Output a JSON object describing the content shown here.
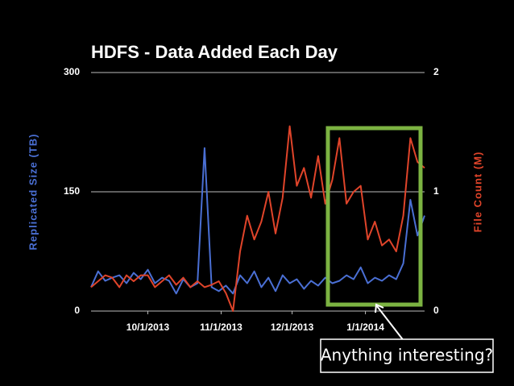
{
  "chart_data": {
    "type": "line",
    "title": "HDFS - Data Added Each Day",
    "y_label": "Replicated Size (TB)",
    "y2_label": "File Count (M)",
    "annotation": "Anything interesting?",
    "x": [
      "2013-09-07",
      "2013-09-10",
      "2013-09-13",
      "2013-09-16",
      "2013-09-19",
      "2013-09-22",
      "2013-09-25",
      "2013-09-28",
      "2013-10-01",
      "2013-10-04",
      "2013-10-07",
      "2013-10-10",
      "2013-10-13",
      "2013-10-16",
      "2013-10-19",
      "2013-10-22",
      "2013-10-25",
      "2013-10-28",
      "2013-10-31",
      "2013-11-03",
      "2013-11-06",
      "2013-11-09",
      "2013-11-12",
      "2013-11-15",
      "2013-11-18",
      "2013-11-21",
      "2013-11-24",
      "2013-11-27",
      "2013-11-30",
      "2013-12-03",
      "2013-12-06",
      "2013-12-09",
      "2013-12-12",
      "2013-12-15",
      "2013-12-18",
      "2013-12-21",
      "2013-12-24",
      "2013-12-27",
      "2013-12-30",
      "2014-01-02",
      "2014-01-05",
      "2014-01-08",
      "2014-01-11",
      "2014-01-14",
      "2014-01-17",
      "2014-01-20",
      "2014-01-23",
      "2014-01-26"
    ],
    "xlim": [
      "2013-09-07",
      "2014-01-26"
    ],
    "xticks": [
      {
        "value": "2013-10-01",
        "label": "10/1/2013"
      },
      {
        "value": "2013-11-01",
        "label": "11/1/2013"
      },
      {
        "value": "2013-12-01",
        "label": "12/1/2013"
      },
      {
        "value": "2014-01-01",
        "label": "1/1/2014"
      }
    ],
    "ylim": [
      0,
      300
    ],
    "yticks": [
      0,
      150,
      300
    ],
    "y2lim": [
      0,
      2
    ],
    "y2ticks": [
      0,
      1,
      2
    ],
    "grid": true,
    "series": [
      {
        "name": "Replicated Size (TB)",
        "color": "#4a6fd4",
        "axis": "y",
        "values": [
          30,
          50,
          38,
          42,
          45,
          35,
          48,
          40,
          52,
          35,
          42,
          38,
          22,
          40,
          30,
          35,
          205,
          30,
          25,
          32,
          22,
          45,
          35,
          50,
          30,
          42,
          25,
          45,
          35,
          40,
          28,
          38,
          32,
          42,
          35,
          38,
          45,
          40,
          55,
          35,
          42,
          38,
          45,
          40,
          60,
          140,
          95,
          120
        ]
      },
      {
        "name": "File Count (M)",
        "color": "#e0442a",
        "axis": "y2",
        "values": [
          0.2,
          0.25,
          0.3,
          0.28,
          0.2,
          0.3,
          0.25,
          0.3,
          0.3,
          0.2,
          0.25,
          0.3,
          0.22,
          0.28,
          0.2,
          0.25,
          0.2,
          0.22,
          0.25,
          0.15,
          0.0,
          0.5,
          0.8,
          0.6,
          0.75,
          1.0,
          0.65,
          0.95,
          1.55,
          1.05,
          1.2,
          0.95,
          1.3,
          0.9,
          1.1,
          1.45,
          0.9,
          1.0,
          1.05,
          0.6,
          0.75,
          0.55,
          0.6,
          0.5,
          0.8,
          1.45,
          1.25,
          1.2
        ]
      }
    ]
  }
}
